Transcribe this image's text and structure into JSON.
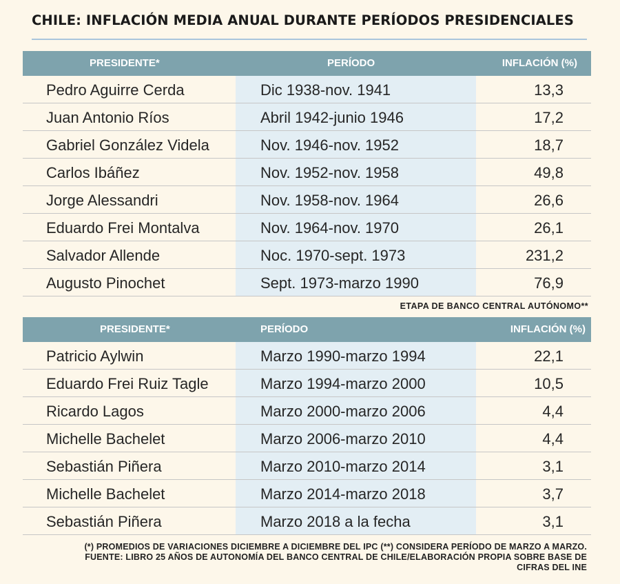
{
  "title": "CHILE: INFLACIÓN MEDIA ANUAL DURANTE PERÍODOS PRESIDENCIALES",
  "table1": {
    "headers": {
      "president": "PRESIDENTE*",
      "period": "PERÍODO",
      "inflation": "INFLACIÓN (%)"
    },
    "rows": [
      {
        "president": "Pedro Aguirre Cerda",
        "period": "Dic 1938-nov. 1941",
        "inflation": "13,3"
      },
      {
        "president": "Juan Antonio Ríos",
        "period": "Abril 1942-junio 1946",
        "inflation": "17,2"
      },
      {
        "president": "Gabriel González Videla",
        "period": "Nov. 1946-nov. 1952",
        "inflation": "18,7"
      },
      {
        "president": "Carlos Ibáñez",
        "period": "Nov. 1952-nov. 1958",
        "inflation": "49,8"
      },
      {
        "president": "Jorge Alessandri",
        "period": "Nov. 1958-nov. 1964",
        "inflation": "26,6"
      },
      {
        "president": "Eduardo Frei Montalva",
        "period": "Nov. 1964-nov. 1970",
        "inflation": "26,1"
      },
      {
        "president": "Salvador Allende",
        "period": "Noc. 1970-sept. 1973",
        "inflation": "231,2"
      },
      {
        "president": "Augusto Pinochet",
        "period": "Sept. 1973-marzo 1990",
        "inflation": "76,9"
      }
    ]
  },
  "mid_note": "ETAPA DE BANCO CENTRAL AUTÓNOMO**",
  "table2": {
    "headers": {
      "president": "PRESIDENTE*",
      "period": "PERÍODO",
      "inflation": "INFLACIÓN (%)"
    },
    "rows": [
      {
        "president": "Patricio Aylwin",
        "period": "Marzo 1990-marzo 1994",
        "inflation": "22,1"
      },
      {
        "president": "Eduardo Frei Ruiz Tagle",
        "period": "Marzo 1994-marzo 2000",
        "inflation": "10,5"
      },
      {
        "president": "Ricardo Lagos",
        "period": "Marzo 2000-marzo 2006",
        "inflation": "4,4"
      },
      {
        "president": "Michelle Bachelet",
        "period": "Marzo 2006-marzo 2010",
        "inflation": "4,4"
      },
      {
        "president": "Sebastián Piñera",
        "period": "Marzo 2010-marzo 2014",
        "inflation": "3,1"
      },
      {
        "president": "Michelle Bachelet",
        "period": "Marzo 2014-marzo 2018",
        "inflation": "3,7"
      },
      {
        "president": "Sebastián Piñera",
        "period": "Marzo 2018 a la fecha",
        "inflation": "3,1"
      }
    ]
  },
  "footer": [
    "(*) PROMEDIOS DE VARIACIONES DICIEMBRE A DICIEMBRE DEL IPC (**) CONSIDERA PERÍODO DE MARZO A MARZO.",
    "FUENTE: LIBRO 25 AÑOS DE AUTONOMÍA DEL BANCO CENTRAL DE CHILE/ELABORACIÓN PROPIA SOBRE BASE DE",
    "CIFRAS DEL INE"
  ],
  "colors": {
    "header_bg": "#7ea3ad",
    "stripe_bg": "#e3eef4",
    "page_bg": "#fdf7ea",
    "rule": "#a9c5dc"
  },
  "chart_data": {
    "type": "table",
    "title": "CHILE: INFLACIÓN MEDIA ANUAL DURANTE PERÍODOS PRESIDENCIALES",
    "columns": [
      "PRESIDENTE*",
      "PERÍODO",
      "INFLACIÓN (%)"
    ],
    "sections": [
      {
        "label": "",
        "rows": [
          [
            "Pedro Aguirre Cerda",
            "Dic 1938-nov. 1941",
            13.3
          ],
          [
            "Juan Antonio Ríos",
            "Abril 1942-junio 1946",
            17.2
          ],
          [
            "Gabriel González Videla",
            "Nov. 1946-nov. 1952",
            18.7
          ],
          [
            "Carlos Ibáñez",
            "Nov. 1952-nov. 1958",
            49.8
          ],
          [
            "Jorge Alessandri",
            "Nov. 1958-nov. 1964",
            26.6
          ],
          [
            "Eduardo Frei Montalva",
            "Nov. 1964-nov. 1970",
            26.1
          ],
          [
            "Salvador Allende",
            "Noc. 1970-sept. 1973",
            231.2
          ],
          [
            "Augusto Pinochet",
            "Sept. 1973-marzo 1990",
            76.9
          ]
        ]
      },
      {
        "label": "ETAPA DE BANCO CENTRAL AUTÓNOMO**",
        "rows": [
          [
            "Patricio Aylwin",
            "Marzo 1990-marzo 1994",
            22.1
          ],
          [
            "Eduardo Frei Ruiz Tagle",
            "Marzo 1994-marzo 2000",
            10.5
          ],
          [
            "Ricardo Lagos",
            "Marzo 2000-marzo 2006",
            4.4
          ],
          [
            "Michelle Bachelet",
            "Marzo 2006-marzo 2010",
            4.4
          ],
          [
            "Sebastián Piñera",
            "Marzo 2010-marzo 2014",
            3.1
          ],
          [
            "Michelle Bachelet",
            "Marzo 2014-marzo 2018",
            3.7
          ],
          [
            "Sebastián Piñera",
            "Marzo 2018 a la fecha",
            3.1
          ]
        ]
      }
    ]
  }
}
